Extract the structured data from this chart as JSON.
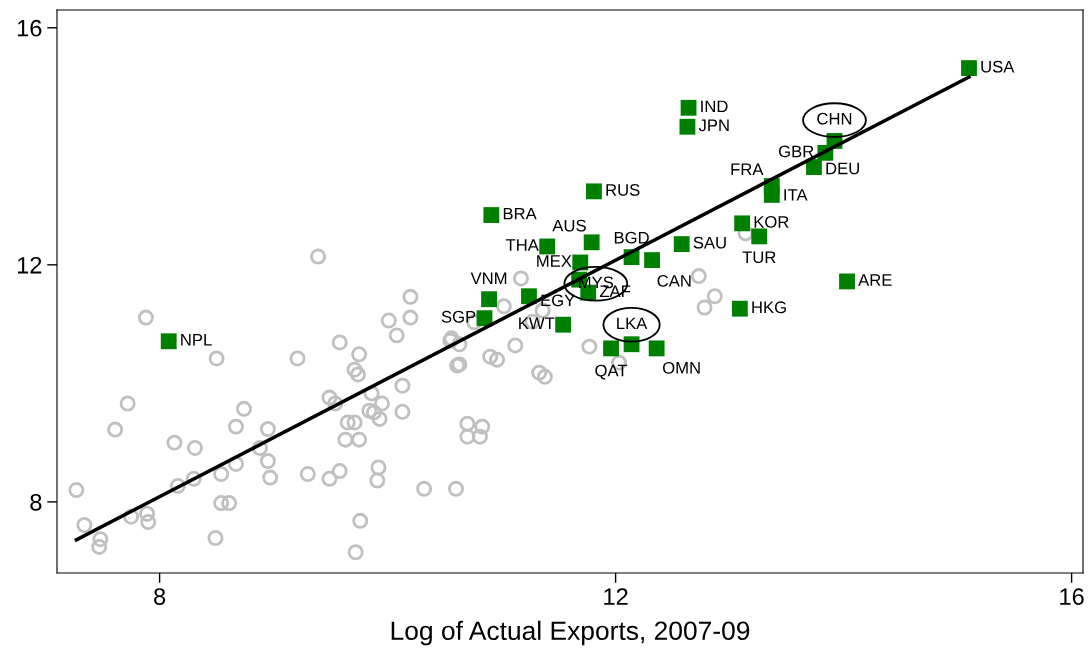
{
  "chart_data": {
    "type": "scatter",
    "xlabel": "Log of Actual Exports, 2007-09",
    "xlim": [
      7.1,
      16.1
    ],
    "ylim": [
      6.8,
      16.3
    ],
    "xticks": [
      8,
      12,
      16
    ],
    "yticks": [
      8,
      12,
      16
    ],
    "grid": false,
    "series": [
      {
        "type": "scatter",
        "marker": "circle",
        "color": "#c0c0c0",
        "x": [
          9.39,
          10.2,
          7.88,
          10.01,
          10.2,
          10.08,
          8.5,
          9.21,
          9.58,
          9.75,
          9.71,
          9.74,
          10.13,
          9.86,
          7.72,
          9.49,
          9.54,
          9.95,
          8.74,
          10.13,
          9.84,
          9.88,
          9.93,
          7.61,
          8.67,
          8.95,
          9.65,
          9.71,
          9.63,
          9.75,
          8.13,
          8.31,
          8.88,
          8.95,
          8.67,
          8.54,
          8.3,
          8.16,
          8.97,
          9.3,
          9.58,
          9.49,
          9.92,
          9.91,
          10.32,
          10.6,
          7.27,
          8.54,
          8.61,
          7.34,
          7.75,
          7.89,
          7.9,
          9.76,
          7.48,
          7.47,
          8.49,
          9.72,
          10.55,
          10.61,
          10.7,
          10.7,
          10.81,
          10.83,
          11.17,
          11.02,
          11.36,
          10.56,
          10.63,
          10.76,
          11.27,
          11.12,
          10.9,
          10.96,
          10.63,
          11.33,
          11.38,
          11.77,
          12.03,
          12.73,
          12.78,
          12.87,
          13.14
        ],
        "values": [
          12.14,
          11.46,
          11.11,
          11.06,
          11.11,
          10.81,
          10.42,
          10.42,
          10.69,
          10.49,
          10.23,
          10.15,
          9.96,
          9.83,
          9.66,
          9.76,
          9.66,
          9.66,
          9.57,
          9.52,
          9.54,
          9.51,
          9.4,
          9.22,
          9.27,
          9.23,
          9.34,
          9.34,
          9.05,
          9.05,
          9.0,
          8.91,
          8.91,
          8.69,
          8.64,
          8.47,
          8.39,
          8.27,
          8.41,
          8.47,
          8.52,
          8.39,
          8.58,
          8.36,
          8.22,
          8.22,
          8.2,
          7.98,
          7.98,
          7.61,
          7.75,
          7.8,
          7.66,
          7.68,
          7.37,
          7.24,
          7.39,
          7.15,
          10.72,
          10.3,
          9.32,
          9.1,
          9.1,
          9.27,
          11.77,
          11.3,
          11.23,
          10.76,
          10.66,
          11.03,
          11.04,
          10.64,
          10.45,
          10.4,
          10.32,
          10.18,
          10.11,
          10.62,
          10.35,
          11.81,
          11.28,
          11.47,
          12.53
        ]
      },
      {
        "type": "line",
        "color": "#000000",
        "marker": "none",
        "line_style": "solid",
        "x": [
          7.27,
          15.1
        ],
        "values": [
          7.36,
          15.17
        ]
      },
      {
        "type": "scatter",
        "marker": "square",
        "color": "#008000",
        "x": [
          15.1,
          12.64,
          12.63,
          13.92,
          13.84,
          13.74,
          13.37,
          13.37,
          11.81,
          10.91,
          13.11,
          13.26,
          11.79,
          11.4,
          12.58,
          12.14,
          12.32,
          11.69,
          14.03,
          11.68,
          11.76,
          10.89,
          11.24,
          13.09,
          10.85,
          11.54,
          12.14,
          11.96,
          12.36,
          8.08
        ],
        "values": [
          15.32,
          14.65,
          14.33,
          14.09,
          13.89,
          13.65,
          13.33,
          13.18,
          13.24,
          12.84,
          12.7,
          12.48,
          12.38,
          12.31,
          12.35,
          12.13,
          12.08,
          12.04,
          11.72,
          11.75,
          11.53,
          11.42,
          11.47,
          11.26,
          11.1,
          10.99,
          10.66,
          10.59,
          10.59,
          10.71
        ]
      }
    ],
    "annotations": [
      {
        "text": "USA",
        "x": 15.1,
        "y": 15.32
      },
      {
        "text": "IND",
        "x": 12.64,
        "y": 14.65
      },
      {
        "text": "JPN",
        "x": 12.63,
        "y": 14.33
      },
      {
        "text": "CHN",
        "x": 13.92,
        "y": 14.09
      },
      {
        "text": "GBR",
        "x": 13.84,
        "y": 13.89
      },
      {
        "text": "DEU",
        "x": 13.74,
        "y": 13.65
      },
      {
        "text": "FRA",
        "x": 13.37,
        "y": 13.33
      },
      {
        "text": "ITA",
        "x": 13.37,
        "y": 13.18
      },
      {
        "text": "RUS",
        "x": 11.81,
        "y": 13.24
      },
      {
        "text": "BRA",
        "x": 10.91,
        "y": 12.84
      },
      {
        "text": "KOR",
        "x": 13.11,
        "y": 12.7
      },
      {
        "text": "TUR",
        "x": 13.26,
        "y": 12.48
      },
      {
        "text": "AUS",
        "x": 11.79,
        "y": 12.38
      },
      {
        "text": "THA",
        "x": 11.4,
        "y": 12.31
      },
      {
        "text": "SAU",
        "x": 12.58,
        "y": 12.35
      },
      {
        "text": "BGD",
        "x": 12.14,
        "y": 12.13
      },
      {
        "text": "CAN",
        "x": 12.32,
        "y": 12.08
      },
      {
        "text": "MEX",
        "x": 11.69,
        "y": 12.04
      },
      {
        "text": "ARE",
        "x": 14.03,
        "y": 11.72
      },
      {
        "text": "MYS",
        "x": 11.68,
        "y": 11.75
      },
      {
        "text": "ZAF",
        "x": 11.76,
        "y": 11.53
      },
      {
        "text": "VNM",
        "x": 10.89,
        "y": 11.42
      },
      {
        "text": "EGY",
        "x": 11.24,
        "y": 11.47
      },
      {
        "text": "HKG",
        "x": 13.09,
        "y": 11.26
      },
      {
        "text": "SGP",
        "x": 10.85,
        "y": 11.1
      },
      {
        "text": "KWT",
        "x": 11.54,
        "y": 10.99
      },
      {
        "text": "LKA",
        "x": 12.14,
        "y": 10.66
      },
      {
        "text": "QAT",
        "x": 11.96,
        "y": 10.59
      },
      {
        "text": "OMN",
        "x": 12.36,
        "y": 10.59
      },
      {
        "text": "NPL",
        "x": 8.08,
        "y": 10.71
      }
    ]
  }
}
